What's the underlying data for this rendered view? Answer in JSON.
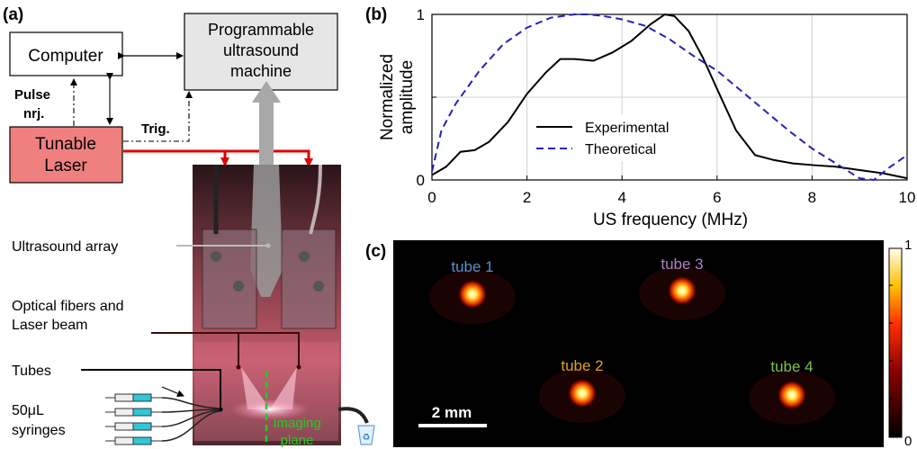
{
  "panel_a": {
    "label": "(a)",
    "computer": "Computer",
    "us_machine": [
      "Programmable",
      "ultrasound",
      "machine"
    ],
    "pulse": [
      "Pulse",
      "nrj."
    ],
    "trig": "Trig.",
    "laser": [
      "Tunable",
      "Laser"
    ],
    "annotations": {
      "us_array": "Ultrasound array",
      "fibers": [
        "Optical fibers and",
        "Laser beam"
      ],
      "tubes": "Tubes",
      "syringes": [
        "50μL",
        "syringes"
      ],
      "imaging_plane": [
        "Imaging",
        "plane"
      ]
    },
    "colors": {
      "laser_box": "#f08080",
      "machine_box": "#e6e6e6",
      "laser_line": "#dd0000",
      "plane": "#22cc22"
    }
  },
  "panel_b": {
    "label": "(b)",
    "chart_data": {
      "type": "line",
      "xlabel": "US frequency (MHz)",
      "ylabel": [
        "Normalized",
        "amplitude"
      ],
      "xlim": [
        0,
        10
      ],
      "ylim": [
        0,
        1
      ],
      "xticks": [
        0,
        2,
        4,
        6,
        8,
        10
      ],
      "yticks": [
        0,
        0.5,
        1
      ],
      "ytick_labels": [
        "0",
        "",
        "1"
      ],
      "grid": true,
      "legend_position": "lower-center",
      "series": [
        {
          "name": "Experimental",
          "color": "#000000",
          "style": "solid",
          "x": [
            0,
            0.3,
            0.6,
            0.9,
            1.2,
            1.6,
            2.0,
            2.4,
            2.7,
            3.0,
            3.4,
            3.8,
            4.2,
            4.6,
            4.9,
            5.1,
            5.4,
            5.7,
            6.0,
            6.4,
            6.8,
            7.2,
            7.6,
            8.0,
            8.5,
            9.0,
            9.5,
            10.0
          ],
          "y": [
            0.03,
            0.08,
            0.17,
            0.18,
            0.23,
            0.35,
            0.52,
            0.65,
            0.73,
            0.73,
            0.72,
            0.77,
            0.84,
            0.94,
            1.0,
            0.99,
            0.9,
            0.74,
            0.55,
            0.3,
            0.15,
            0.12,
            0.1,
            0.09,
            0.08,
            0.06,
            0.04,
            0.01
          ]
        },
        {
          "name": "Theoretical",
          "color": "#2222bb",
          "style": "dashed",
          "x": [
            0,
            0.2,
            0.5,
            1.0,
            1.5,
            2.0,
            2.5,
            3.0,
            3.3,
            3.6,
            4.0,
            4.5,
            5.0,
            5.5,
            6.0,
            6.5,
            7.0,
            7.5,
            8.0,
            8.5,
            9.0,
            9.3,
            9.6,
            10.0
          ],
          "y": [
            0.05,
            0.3,
            0.46,
            0.66,
            0.82,
            0.92,
            0.98,
            1.0,
            1.0,
            0.99,
            0.97,
            0.93,
            0.85,
            0.75,
            0.66,
            0.54,
            0.42,
            0.3,
            0.19,
            0.1,
            0.01,
            0.0,
            0.07,
            0.15
          ]
        }
      ]
    }
  },
  "panel_c": {
    "label": "(c)",
    "tubes": [
      {
        "label": "tube 1",
        "color": "#5c8fd0"
      },
      {
        "label": "tube 3",
        "color": "#b080c8"
      },
      {
        "label": "tube 2",
        "color": "#e0a020"
      },
      {
        "label": "tube 4",
        "color": "#80c050"
      }
    ],
    "scalebar": "2 mm",
    "colorbar": {
      "max": "1",
      "min": "0"
    }
  }
}
